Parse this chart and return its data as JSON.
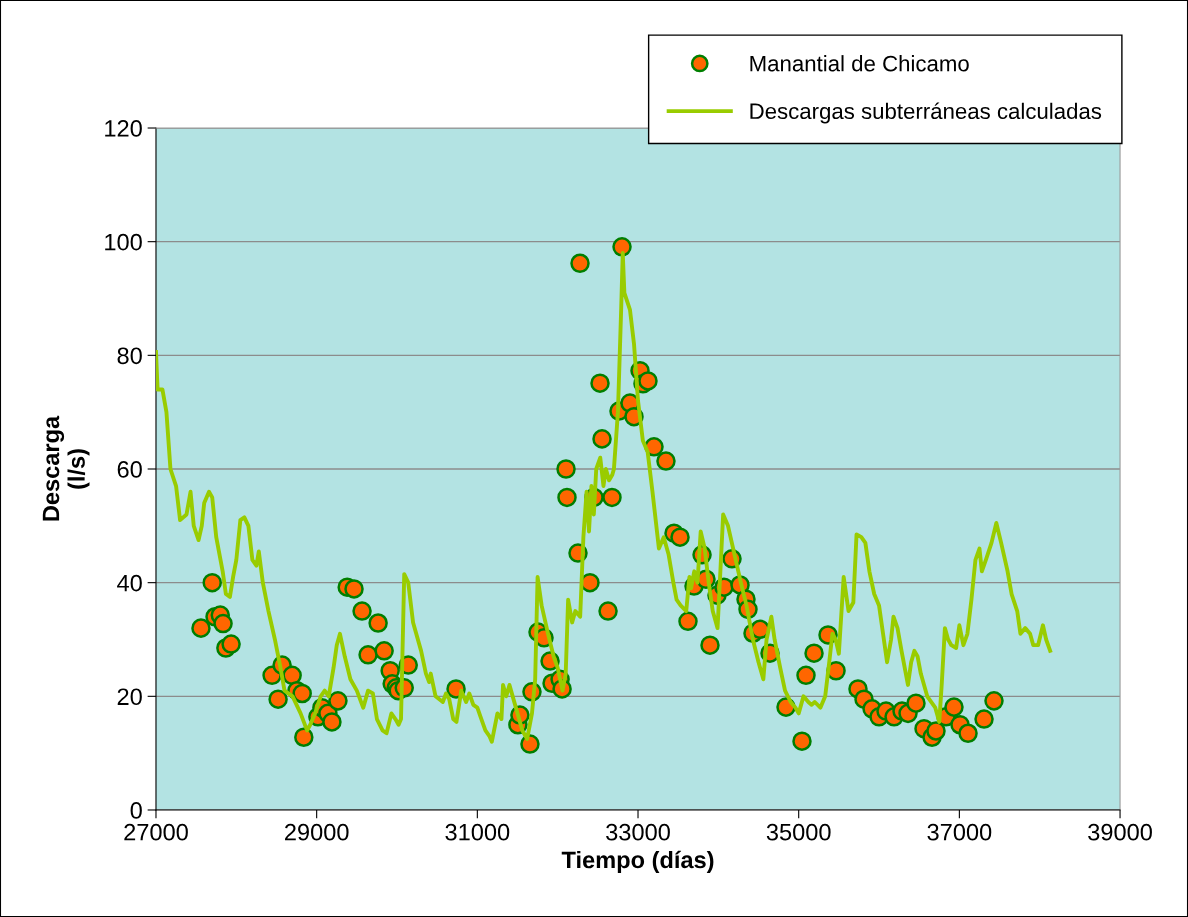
{
  "chart_data": {
    "type": "scatter",
    "xlabel": "Tiempo (días)",
    "ylabel": "Descarga\n(l/s)",
    "xlim": [
      27000,
      39000
    ],
    "xticks": [
      27000,
      29000,
      31000,
      33000,
      35000,
      37000,
      39000
    ],
    "ylim": [
      0,
      120
    ],
    "yticks": [
      0,
      20,
      40,
      60,
      80,
      100,
      120
    ],
    "grid": "y",
    "legend": "top right",
    "series": [
      {
        "name": "Manantial de Chicamo",
        "marker": "circle",
        "color": "#ff6600",
        "x": [
          27560,
          27700,
          27735,
          27800,
          27835,
          27870,
          27935,
          28445,
          28520,
          28570,
          28695,
          28755,
          28820,
          28840,
          29015,
          29065,
          29140,
          29190,
          29265,
          29380,
          29465,
          29565,
          29640,
          29765,
          29840,
          29915,
          29940,
          29990,
          30015,
          30090,
          30140,
          30735,
          31505,
          31530,
          31655,
          31680,
          31755,
          31830,
          31905,
          31930,
          32030,
          32055,
          32104,
          32116,
          32253,
          32402,
          32627,
          32452,
          32676,
          32278,
          32801,
          32527,
          32552,
          32763,
          32900,
          32950,
          33025,
          33062,
          33124,
          33199,
          33348,
          33448,
          33523,
          33622,
          33797,
          33697,
          33846,
          33896,
          33983,
          34070,
          34170,
          34270,
          34344,
          34369,
          34431,
          34519,
          34643,
          34842,
          35041,
          35091,
          35191,
          35365,
          35465,
          35738,
          35813,
          35913,
          36000,
          36087,
          36187,
          36286,
          36361,
          36460,
          36560,
          36660,
          36709,
          36834,
          36933,
          37008,
          37108,
          37307,
          37431
        ],
        "values": [
          32,
          40,
          34,
          34.3,
          32.8,
          28.5,
          29.2,
          23.7,
          19.5,
          25.5,
          23.7,
          21,
          20.5,
          12.8,
          16.4,
          18,
          17,
          15.5,
          19.2,
          39.2,
          38.9,
          35,
          27.3,
          32.9,
          28,
          24.5,
          22.2,
          21.5,
          21,
          21.5,
          25.5,
          21.3,
          15,
          16.7,
          11.6,
          20.8,
          31.3,
          30.3,
          26.2,
          22.3,
          23,
          21.3,
          60,
          55,
          45.2,
          40,
          35,
          55,
          55,
          96.2,
          99.1,
          75.1,
          65.3,
          70.2,
          71.6,
          69.2,
          77.3,
          75,
          75.5,
          63.9,
          61.4,
          48.7,
          48,
          33.2,
          44.9,
          39.4,
          40.6,
          29,
          37.8,
          39.2,
          44.2,
          39.6,
          37.1,
          35.3,
          31.1,
          31.8,
          27.6,
          18.1,
          12.1,
          23.7,
          27.6,
          30.8,
          24.5,
          21.3,
          19.5,
          17.8,
          16.4,
          17.4,
          16.4,
          17.4,
          17,
          18.8,
          14.3,
          12.8,
          13.9,
          16.4,
          18.1,
          15,
          13.5,
          16,
          19.2
        ]
      },
      {
        "name": "Descargas subterráneas calculadas",
        "type": "line",
        "color": "#99cc00",
        "x": [
          27000,
          27020,
          27080,
          27130,
          27180,
          27250,
          27300,
          27380,
          27430,
          27470,
          27530,
          27570,
          27600,
          27660,
          27700,
          27750,
          27830,
          27870,
          27920,
          27960,
          28000,
          28050,
          28100,
          28150,
          28200,
          28250,
          28280,
          28330,
          28400,
          28480,
          28550,
          28600,
          28700,
          28800,
          28880,
          28920,
          28980,
          29050,
          29100,
          29150,
          29210,
          29250,
          29290,
          29350,
          29420,
          29500,
          29580,
          29640,
          29700,
          29750,
          29820,
          29870,
          29930,
          29980,
          30020,
          30050,
          30090,
          30140,
          30200,
          30300,
          30360,
          30400,
          30420,
          30480,
          30570,
          30610,
          30650,
          30700,
          30740,
          30800,
          30860,
          30900,
          30950,
          31000,
          31050,
          31100,
          31150,
          31180,
          31250,
          31300,
          31320,
          31360,
          31400,
          31500,
          31560,
          31620,
          31680,
          31720,
          31750,
          31800,
          31880,
          31950,
          32000,
          32060,
          32100,
          32130,
          32180,
          32220,
          32280,
          32320,
          32360,
          32390,
          32420,
          32450,
          32480,
          32530,
          32570,
          32600,
          32640,
          32680,
          32700,
          32750,
          32790,
          32810,
          32830,
          32900,
          32950,
          33000,
          33060,
          33120,
          33180,
          33260,
          33320,
          33380,
          33440,
          33480,
          33530,
          33600,
          33640,
          33660,
          33700,
          33740,
          33780,
          33830,
          33880,
          33930,
          33990,
          34060,
          34120,
          34200,
          34280,
          34350,
          34430,
          34500,
          34560,
          34600,
          34660,
          34700,
          34770,
          34830,
          34900,
          34960,
          35000,
          35060,
          35120,
          35160,
          35200,
          35270,
          35330,
          35380,
          35420,
          35460,
          35500,
          35560,
          35620,
          35680,
          35720,
          35780,
          35830,
          35880,
          35940,
          36000,
          36050,
          36100,
          36150,
          36180,
          36230,
          36280,
          36360,
          36400,
          36440,
          36480,
          36520,
          36600,
          36700,
          36750,
          36780,
          36820,
          36860,
          36900,
          36960,
          37000,
          37050,
          37100,
          37150,
          37200,
          37250,
          37280,
          37330,
          37400,
          37460,
          37520,
          37600,
          37650,
          37720,
          37760,
          37820,
          37880,
          37920,
          37980,
          38040,
          38080,
          38130
        ],
        "values": [
          80.6,
          74,
          74,
          70,
          60,
          57,
          51,
          52,
          56,
          50,
          47.5,
          50,
          54,
          56,
          55,
          48,
          42,
          38,
          37.5,
          41,
          44,
          51,
          51.5,
          50,
          44,
          43,
          45.5,
          40,
          35,
          30,
          25,
          21,
          20,
          17,
          14,
          15,
          17,
          20,
          21,
          20,
          25,
          29,
          31,
          27,
          23,
          21,
          18,
          21,
          20.5,
          16,
          14,
          13.5,
          17,
          16,
          15,
          16,
          41.5,
          40,
          33,
          28,
          24,
          22.5,
          24,
          20,
          19,
          20.5,
          19.5,
          16,
          15.5,
          21,
          19,
          20.5,
          18.5,
          18,
          16,
          14,
          13,
          12,
          17,
          16,
          22,
          20,
          22,
          17,
          14,
          12.5,
          17,
          23,
          41,
          36,
          31,
          27,
          25,
          21,
          24,
          37,
          33,
          35,
          34,
          48,
          56,
          49,
          57,
          52,
          60,
          62,
          57,
          60,
          58,
          59,
          60,
          70,
          88,
          98,
          91,
          88,
          82,
          72,
          65,
          63,
          56,
          46,
          48,
          45,
          40,
          37,
          36,
          35,
          41,
          39,
          42,
          40,
          49,
          46,
          40,
          35,
          32,
          52,
          50,
          45,
          40,
          36,
          30,
          26,
          23,
          30,
          34,
          30,
          25,
          21,
          19,
          18,
          17,
          20,
          19,
          18.5,
          19,
          18,
          20,
          26,
          31,
          30,
          27.5,
          41,
          35,
          36.5,
          48.5,
          48,
          47,
          42,
          38,
          36,
          31,
          26,
          30,
          34,
          32,
          28,
          22,
          26,
          28,
          27,
          24,
          20,
          18,
          15.5,
          22,
          32,
          30,
          29,
          28.5,
          32.5,
          29,
          31,
          37,
          44,
          46,
          42,
          44,
          47,
          50.5,
          47,
          42,
          38,
          35,
          31,
          32,
          31,
          29,
          29,
          32.5,
          30,
          28
        ]
      }
    ]
  }
}
